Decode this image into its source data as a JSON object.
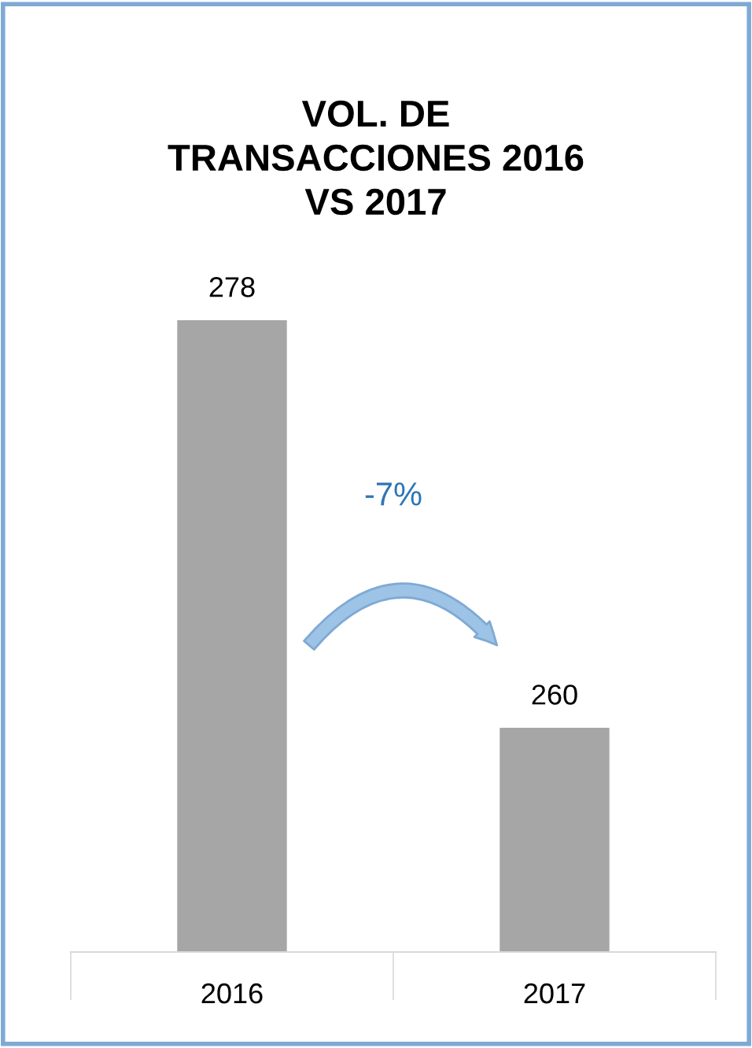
{
  "chart_data": {
    "type": "bar",
    "title": "VOL. DE\nTRANSACCIONES 2016\nVS 2017",
    "categories": [
      "2016",
      "2017"
    ],
    "values": [
      278,
      260
    ],
    "color": "#a6a6a6",
    "tick_labels": "x",
    "data_labels": true,
    "grid": false,
    "annotations": [
      "-7%"
    ]
  }
}
